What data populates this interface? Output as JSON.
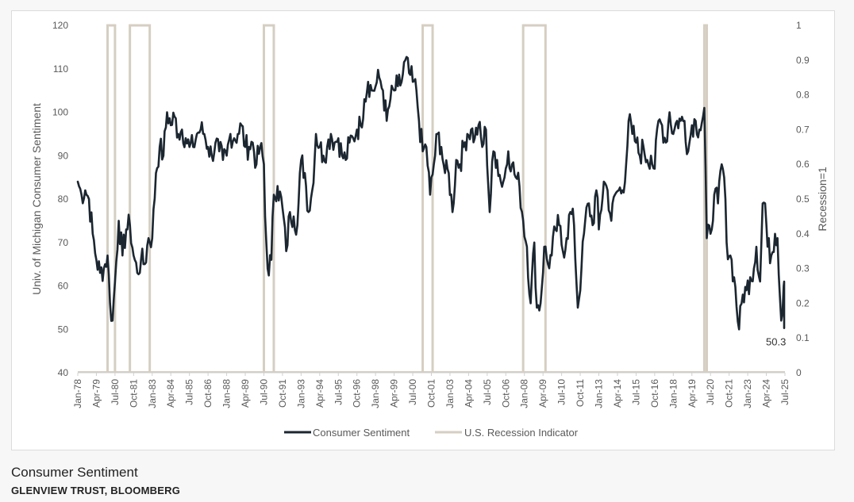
{
  "caption": {
    "title": "Consumer Sentiment",
    "source": "GLENVIEW TRUST, BLOOMBERG"
  },
  "chart_data": {
    "type": "line",
    "ylabel": "Univ. of Michigan Consumer Sentiment",
    "y2label": "Recession=1",
    "ylim": [
      40,
      120
    ],
    "y2lim": [
      0,
      1
    ],
    "yticks": [
      "40",
      "50",
      "60",
      "70",
      "80",
      "90",
      "100",
      "110",
      "120"
    ],
    "y2ticks": [
      "0",
      "0.1",
      "0.2",
      "0.3",
      "0.4",
      "0.5",
      "0.6",
      "0.7",
      "0.8",
      "0.9",
      "1"
    ],
    "xticks": [
      "Jan-78",
      "Apr-79",
      "Jul-80",
      "Oct-81",
      "Jan-83",
      "Apr-84",
      "Jul-85",
      "Oct-86",
      "Jan-88",
      "Apr-89",
      "Jul-90",
      "Oct-91",
      "Jan-93",
      "Apr-94",
      "Jul-95",
      "Oct-96",
      "Jan-98",
      "Apr-99",
      "Jul-00",
      "Oct-01",
      "Jan-03",
      "Apr-04",
      "Jul-05",
      "Oct-06",
      "Jan-08",
      "Apr-09",
      "Jul-10",
      "Oct-11",
      "Jan-13",
      "Apr-14",
      "Jul-15",
      "Oct-16",
      "Jan-18",
      "Apr-19",
      "Jul-20",
      "Oct-21",
      "Jan-23",
      "Apr-24",
      "Jul-25"
    ],
    "xlim": [
      "1978-01",
      "2025-07"
    ],
    "grid": false,
    "legend_position": "bottom",
    "annotation": "50.3",
    "series": [
      {
        "name": "Consumer Sentiment",
        "color": "#1b2630",
        "axis": "left",
        "points": [
          [
            "1978-01",
            84
          ],
          [
            "1978-04",
            81
          ],
          [
            "1978-07",
            82
          ],
          [
            "1978-10",
            80
          ],
          [
            "1979-01",
            72
          ],
          [
            "1979-04",
            66
          ],
          [
            "1979-07",
            63
          ],
          [
            "1979-10",
            64
          ],
          [
            "1980-01",
            67
          ],
          [
            "1980-03",
            56
          ],
          [
            "1980-05",
            52
          ],
          [
            "1980-07",
            61
          ],
          [
            "1980-10",
            75
          ],
          [
            "1981-01",
            67
          ],
          [
            "1981-04",
            73
          ],
          [
            "1981-07",
            74
          ],
          [
            "1981-10",
            67
          ],
          [
            "1982-01",
            63
          ],
          [
            "1982-04",
            66
          ],
          [
            "1982-07",
            65
          ],
          [
            "1982-10",
            71
          ],
          [
            "1983-01",
            71
          ],
          [
            "1983-04",
            86
          ],
          [
            "1983-07",
            92
          ],
          [
            "1983-10",
            90
          ],
          [
            "1984-01",
            100
          ],
          [
            "1984-04",
            97
          ],
          [
            "1984-07",
            99
          ],
          [
            "1984-10",
            95
          ],
          [
            "1985-01",
            96
          ],
          [
            "1985-04",
            94
          ],
          [
            "1985-07",
            92
          ],
          [
            "1985-10",
            92
          ],
          [
            "1986-01",
            95
          ],
          [
            "1986-04",
            96
          ],
          [
            "1986-07",
            95
          ],
          [
            "1986-10",
            92
          ],
          [
            "1987-01",
            90
          ],
          [
            "1987-04",
            93
          ],
          [
            "1987-07",
            91
          ],
          [
            "1987-10",
            89
          ],
          [
            "1988-01",
            90
          ],
          [
            "1988-04",
            95
          ],
          [
            "1988-07",
            94
          ],
          [
            "1988-10",
            95
          ],
          [
            "1989-01",
            97
          ],
          [
            "1989-04",
            92
          ],
          [
            "1989-07",
            92
          ],
          [
            "1989-10",
            93
          ],
          [
            "1990-01",
            88
          ],
          [
            "1990-04",
            92
          ],
          [
            "1990-07",
            88
          ],
          [
            "1990-08",
            76
          ],
          [
            "1990-10",
            64
          ],
          [
            "1991-01",
            66
          ],
          [
            "1991-03",
            81
          ],
          [
            "1991-06",
            83
          ],
          [
            "1991-10",
            78
          ],
          [
            "1992-01",
            68
          ],
          [
            "1992-04",
            77
          ],
          [
            "1992-07",
            76
          ],
          [
            "1992-10",
            74
          ],
          [
            "1993-01",
            89
          ],
          [
            "1993-04",
            86
          ],
          [
            "1993-07",
            77
          ],
          [
            "1993-10",
            82
          ],
          [
            "1994-01",
            95
          ],
          [
            "1994-04",
            92
          ],
          [
            "1994-07",
            90
          ],
          [
            "1994-10",
            92
          ],
          [
            "1995-01",
            95
          ],
          [
            "1995-04",
            93
          ],
          [
            "1995-07",
            94
          ],
          [
            "1995-10",
            90
          ],
          [
            "1996-01",
            89
          ],
          [
            "1996-04",
            93
          ],
          [
            "1996-07",
            94
          ],
          [
            "1996-10",
            96
          ],
          [
            "1997-01",
            97
          ],
          [
            "1997-04",
            103
          ],
          [
            "1997-07",
            107
          ],
          [
            "1997-10",
            105
          ],
          [
            "1998-01",
            106
          ],
          [
            "1998-04",
            108
          ],
          [
            "1998-07",
            105
          ],
          [
            "1998-10",
            98
          ],
          [
            "1999-01",
            103
          ],
          [
            "1999-04",
            105
          ],
          [
            "1999-07",
            106
          ],
          [
            "1999-10",
            107
          ],
          [
            "2000-01",
            112
          ],
          [
            "2000-04",
            109
          ],
          [
            "2000-07",
            107
          ],
          [
            "2000-10",
            105
          ],
          [
            "2000-12",
            98
          ],
          [
            "2001-03",
            91
          ],
          [
            "2001-06",
            92
          ],
          [
            "2001-09",
            81
          ],
          [
            "2001-12",
            88
          ],
          [
            "2002-03",
            95
          ],
          [
            "2002-06",
            92
          ],
          [
            "2002-09",
            86
          ],
          [
            "2002-12",
            86
          ],
          [
            "2003-03",
            77
          ],
          [
            "2003-06",
            89
          ],
          [
            "2003-09",
            88
          ],
          [
            "2003-12",
            92
          ],
          [
            "2004-03",
            95
          ],
          [
            "2004-06",
            96
          ],
          [
            "2004-09",
            94
          ],
          [
            "2004-12",
            97
          ],
          [
            "2005-03",
            92
          ],
          [
            "2005-06",
            96
          ],
          [
            "2005-09",
            77
          ],
          [
            "2005-12",
            91
          ],
          [
            "2006-03",
            89
          ],
          [
            "2006-06",
            84
          ],
          [
            "2006-09",
            85
          ],
          [
            "2006-12",
            91
          ],
          [
            "2007-03",
            88
          ],
          [
            "2007-06",
            85
          ],
          [
            "2007-09",
            83
          ],
          [
            "2007-12",
            75
          ],
          [
            "2008-03",
            69
          ],
          [
            "2008-06",
            56
          ],
          [
            "2008-09",
            70
          ],
          [
            "2008-11",
            55
          ],
          [
            "2009-02",
            56
          ],
          [
            "2009-05",
            69
          ],
          [
            "2009-08",
            65
          ],
          [
            "2009-11",
            67
          ],
          [
            "2010-02",
            73
          ],
          [
            "2010-05",
            74
          ],
          [
            "2010-08",
            68
          ],
          [
            "2010-11",
            71
          ],
          [
            "2011-02",
            77
          ],
          [
            "2011-05",
            74
          ],
          [
            "2011-08",
            55
          ],
          [
            "2011-11",
            64
          ],
          [
            "2012-02",
            75
          ],
          [
            "2012-05",
            79
          ],
          [
            "2012-08",
            74
          ],
          [
            "2012-11",
            82
          ],
          [
            "2013-01",
            73
          ],
          [
            "2013-05",
            84
          ],
          [
            "2013-08",
            82
          ],
          [
            "2013-11",
            75
          ],
          [
            "2014-02",
            81
          ],
          [
            "2014-05",
            82
          ],
          [
            "2014-08",
            82
          ],
          [
            "2014-11",
            88
          ],
          [
            "2015-01",
            98
          ],
          [
            "2015-04",
            95
          ],
          [
            "2015-07",
            93
          ],
          [
            "2015-10",
            90
          ],
          [
            "2016-01",
            92
          ],
          [
            "2016-04",
            89
          ],
          [
            "2016-07",
            90
          ],
          [
            "2016-10",
            87
          ],
          [
            "2017-01",
            98
          ],
          [
            "2017-04",
            97
          ],
          [
            "2017-07",
            93
          ],
          [
            "2017-10",
            100
          ],
          [
            "2018-01",
            95
          ],
          [
            "2018-04",
            98
          ],
          [
            "2018-07",
            98
          ],
          [
            "2018-10",
            98
          ],
          [
            "2019-01",
            91
          ],
          [
            "2019-04",
            97
          ],
          [
            "2019-07",
            98
          ],
          [
            "2019-10",
            96
          ],
          [
            "2020-01",
            99
          ],
          [
            "2020-02",
            101
          ],
          [
            "2020-04",
            71
          ],
          [
            "2020-07",
            72
          ],
          [
            "2020-10",
            81
          ],
          [
            "2021-01",
            79
          ],
          [
            "2021-04",
            88
          ],
          [
            "2021-06",
            85
          ],
          [
            "2021-08",
            70
          ],
          [
            "2021-11",
            67
          ],
          [
            "2022-02",
            62
          ],
          [
            "2022-06",
            50
          ],
          [
            "2022-09",
            58
          ],
          [
            "2022-12",
            59
          ],
          [
            "2023-03",
            62
          ],
          [
            "2023-06",
            64
          ],
          [
            "2023-08",
            69
          ],
          [
            "2023-11",
            61
          ],
          [
            "2024-01",
            79
          ],
          [
            "2024-03",
            79
          ],
          [
            "2024-05",
            69
          ],
          [
            "2024-08",
            67
          ],
          [
            "2024-11",
            72
          ],
          [
            "2025-01",
            71
          ],
          [
            "2025-04",
            52
          ],
          [
            "2025-06",
            60
          ],
          [
            "2025-07",
            61
          ],
          [
            "2025-08",
            58
          ],
          [
            "2025-10",
            53
          ],
          [
            "2025-11",
            50.3
          ]
        ]
      },
      {
        "name": "U.S. Recession Indicator",
        "color": "#d5cec2",
        "axis": "right",
        "periods": [
          [
            "1980-01",
            "1980-07"
          ],
          [
            "1981-07",
            "1982-11"
          ],
          [
            "1990-07",
            "1991-03"
          ],
          [
            "2001-03",
            "2001-11"
          ],
          [
            "2007-12",
            "2009-06"
          ],
          [
            "2020-02",
            "2020-04"
          ]
        ]
      }
    ]
  }
}
